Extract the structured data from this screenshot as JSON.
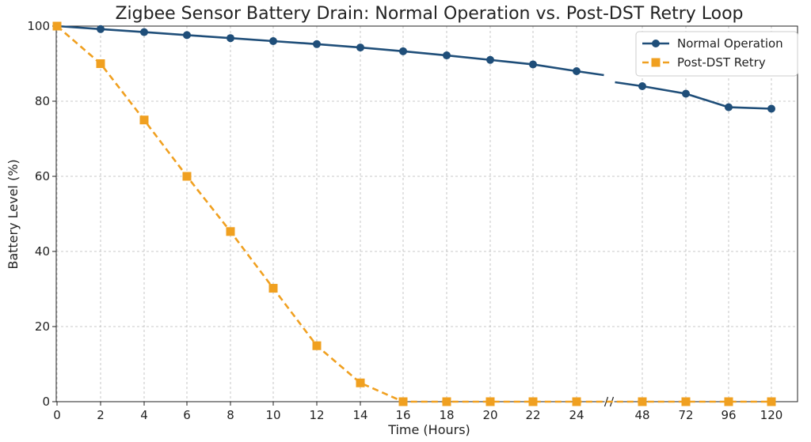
{
  "chart_data": {
    "type": "line",
    "title": "Zigbee Sensor Battery Drain: Normal Operation vs. Post-DST Retry Loop",
    "xlabel": "Time (Hours)",
    "ylabel": "Battery Level (%)",
    "x": [
      "0",
      "2",
      "4",
      "6",
      "8",
      "10",
      "12",
      "14",
      "16",
      "18",
      "20",
      "22",
      "24",
      "48",
      "72",
      "96",
      "120"
    ],
    "x_axis_break": "between 24 and 48",
    "ylim": [
      0,
      100
    ],
    "yticks": [
      "0",
      "20",
      "40",
      "60",
      "80",
      "100"
    ],
    "grid": true,
    "legend_position": "top-right",
    "series": [
      {
        "name": "Normal Operation",
        "color": "#1f4e79",
        "marker": "circle",
        "line_style": "solid",
        "values": [
          100,
          99.2,
          98.4,
          97.6,
          96.8,
          96.0,
          95.2,
          94.3,
          93.3,
          92.2,
          91.0,
          89.8,
          88.0,
          84.0,
          82.0,
          78.4,
          78.0
        ]
      },
      {
        "name": "Post-DST Retry",
        "color": "#f0a020",
        "marker": "square",
        "line_style": "dashed",
        "values": [
          100,
          90,
          75,
          60,
          45.3,
          30.2,
          14.9,
          5.0,
          0,
          0,
          0,
          0,
          0,
          0,
          0,
          0,
          0
        ]
      }
    ]
  }
}
